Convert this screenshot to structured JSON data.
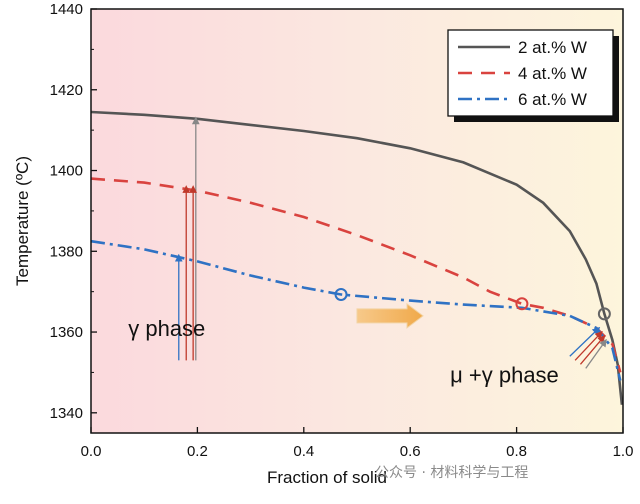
{
  "chart_data": {
    "type": "line",
    "xlabel": "Fraction of solid",
    "ylabel": "Temperature (ºC)",
    "xlim": [
      0.0,
      1.0
    ],
    "ylim": [
      1335,
      1440
    ],
    "x_ticks": [
      "0.0",
      "0.2",
      "0.4",
      "0.6",
      "0.8",
      "1.0"
    ],
    "y_ticks": [
      "1340",
      "1360",
      "1380",
      "1400",
      "1420",
      "1440"
    ],
    "grid": false,
    "legend_position": "top-right",
    "background": "gradient pink (left) to pale yellow (right)",
    "series": [
      {
        "name": "2 at.% W",
        "color": "#555555",
        "style": "solid",
        "points": [
          [
            0.0,
            1414.5
          ],
          [
            0.1,
            1413.8
          ],
          [
            0.2,
            1412.8
          ],
          [
            0.3,
            1411.3
          ],
          [
            0.4,
            1409.8
          ],
          [
            0.5,
            1408.0
          ],
          [
            0.6,
            1405.5
          ],
          [
            0.7,
            1402.0
          ],
          [
            0.8,
            1396.5
          ],
          [
            0.85,
            1392.0
          ],
          [
            0.9,
            1385.0
          ],
          [
            0.93,
            1378.0
          ],
          [
            0.95,
            1372.0
          ],
          [
            0.965,
            1364.5
          ],
          [
            0.98,
            1358.0
          ],
          [
            0.99,
            1352.0
          ],
          [
            0.998,
            1342.0
          ]
        ]
      },
      {
        "name": "4 at.% W",
        "color": "#d9433f",
        "style": "dashed",
        "points": [
          [
            0.0,
            1398.0
          ],
          [
            0.1,
            1397.0
          ],
          [
            0.2,
            1395.0
          ],
          [
            0.3,
            1392.0
          ],
          [
            0.4,
            1388.5
          ],
          [
            0.5,
            1384.0
          ],
          [
            0.6,
            1379.0
          ],
          [
            0.7,
            1373.5
          ],
          [
            0.75,
            1370.0
          ],
          [
            0.81,
            1367.0
          ],
          [
            0.85,
            1366.0
          ],
          [
            0.9,
            1364.0
          ],
          [
            0.95,
            1361.0
          ],
          [
            0.98,
            1357.0
          ],
          [
            0.995,
            1350.0
          ]
        ]
      },
      {
        "name": "6 at.% W",
        "color": "#2f72c4",
        "style": "dashdot",
        "points": [
          [
            0.0,
            1382.5
          ],
          [
            0.1,
            1380.5
          ],
          [
            0.2,
            1377.5
          ],
          [
            0.3,
            1374.0
          ],
          [
            0.4,
            1371.0
          ],
          [
            0.47,
            1369.3
          ],
          [
            0.6,
            1367.8
          ],
          [
            0.7,
            1366.8
          ],
          [
            0.81,
            1366.0
          ],
          [
            0.9,
            1364.0
          ],
          [
            0.95,
            1361.0
          ],
          [
            0.98,
            1356.0
          ],
          [
            0.995,
            1348.0
          ]
        ]
      }
    ],
    "markers": [
      {
        "x": 0.47,
        "y": 1369.3,
        "color": "#2f72c4"
      },
      {
        "x": 0.81,
        "y": 1367.0,
        "color": "#d9433f"
      },
      {
        "x": 0.965,
        "y": 1364.5,
        "color": "#666666"
      }
    ],
    "annotations": {
      "gamma_label": "γ phase",
      "mu_gamma_label": "μ +γ phase"
    }
  },
  "watermark": "公众号 · 材料科学与工程"
}
